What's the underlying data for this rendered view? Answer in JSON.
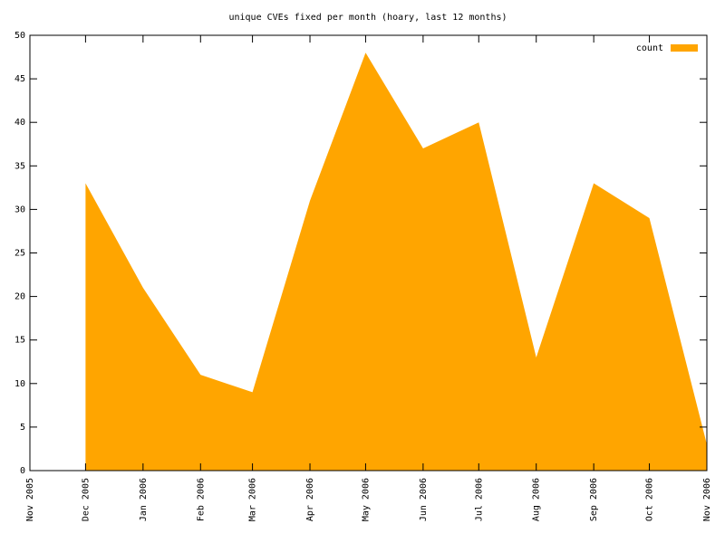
{
  "chart_data": {
    "type": "area",
    "title": "unique CVEs fixed per month (hoary, last 12 months)",
    "x": [
      "2005-12",
      "2006-01",
      "2006-02",
      "2006-03",
      "2006-04",
      "2006-05",
      "2006-06",
      "2006-07",
      "2006-08",
      "2006-09",
      "2006-10",
      "2006-11"
    ],
    "series": [
      {
        "name": "count",
        "color": "#ffa500",
        "values": [
          33,
          21,
          11,
          9,
          31,
          48,
          37,
          40,
          13,
          33,
          29,
          3
        ]
      }
    ],
    "xlim": [
      "2005-11",
      "2006-11"
    ],
    "xticks": [
      {
        "value": "2005-11",
        "label": "Nov 2005"
      },
      {
        "value": "2005-12",
        "label": "Dec 2005"
      },
      {
        "value": "2006-01",
        "label": "Jan 2006"
      },
      {
        "value": "2006-02",
        "label": "Feb 2006"
      },
      {
        "value": "2006-03",
        "label": "Mar 2006"
      },
      {
        "value": "2006-04",
        "label": "Apr 2006"
      },
      {
        "value": "2006-05",
        "label": "May 2006"
      },
      {
        "value": "2006-06",
        "label": "Jun 2006"
      },
      {
        "value": "2006-07",
        "label": "Jul 2006"
      },
      {
        "value": "2006-08",
        "label": "Aug 2006"
      },
      {
        "value": "2006-09",
        "label": "Sep 2006"
      },
      {
        "value": "2006-10",
        "label": "Oct 2006"
      },
      {
        "value": "2006-11",
        "label": "Nov 2006"
      }
    ],
    "ylim": [
      0,
      50
    ],
    "yticks": [
      0,
      5,
      10,
      15,
      20,
      25,
      30,
      35,
      40,
      45,
      50
    ],
    "legend": "top-right",
    "grid": false
  }
}
